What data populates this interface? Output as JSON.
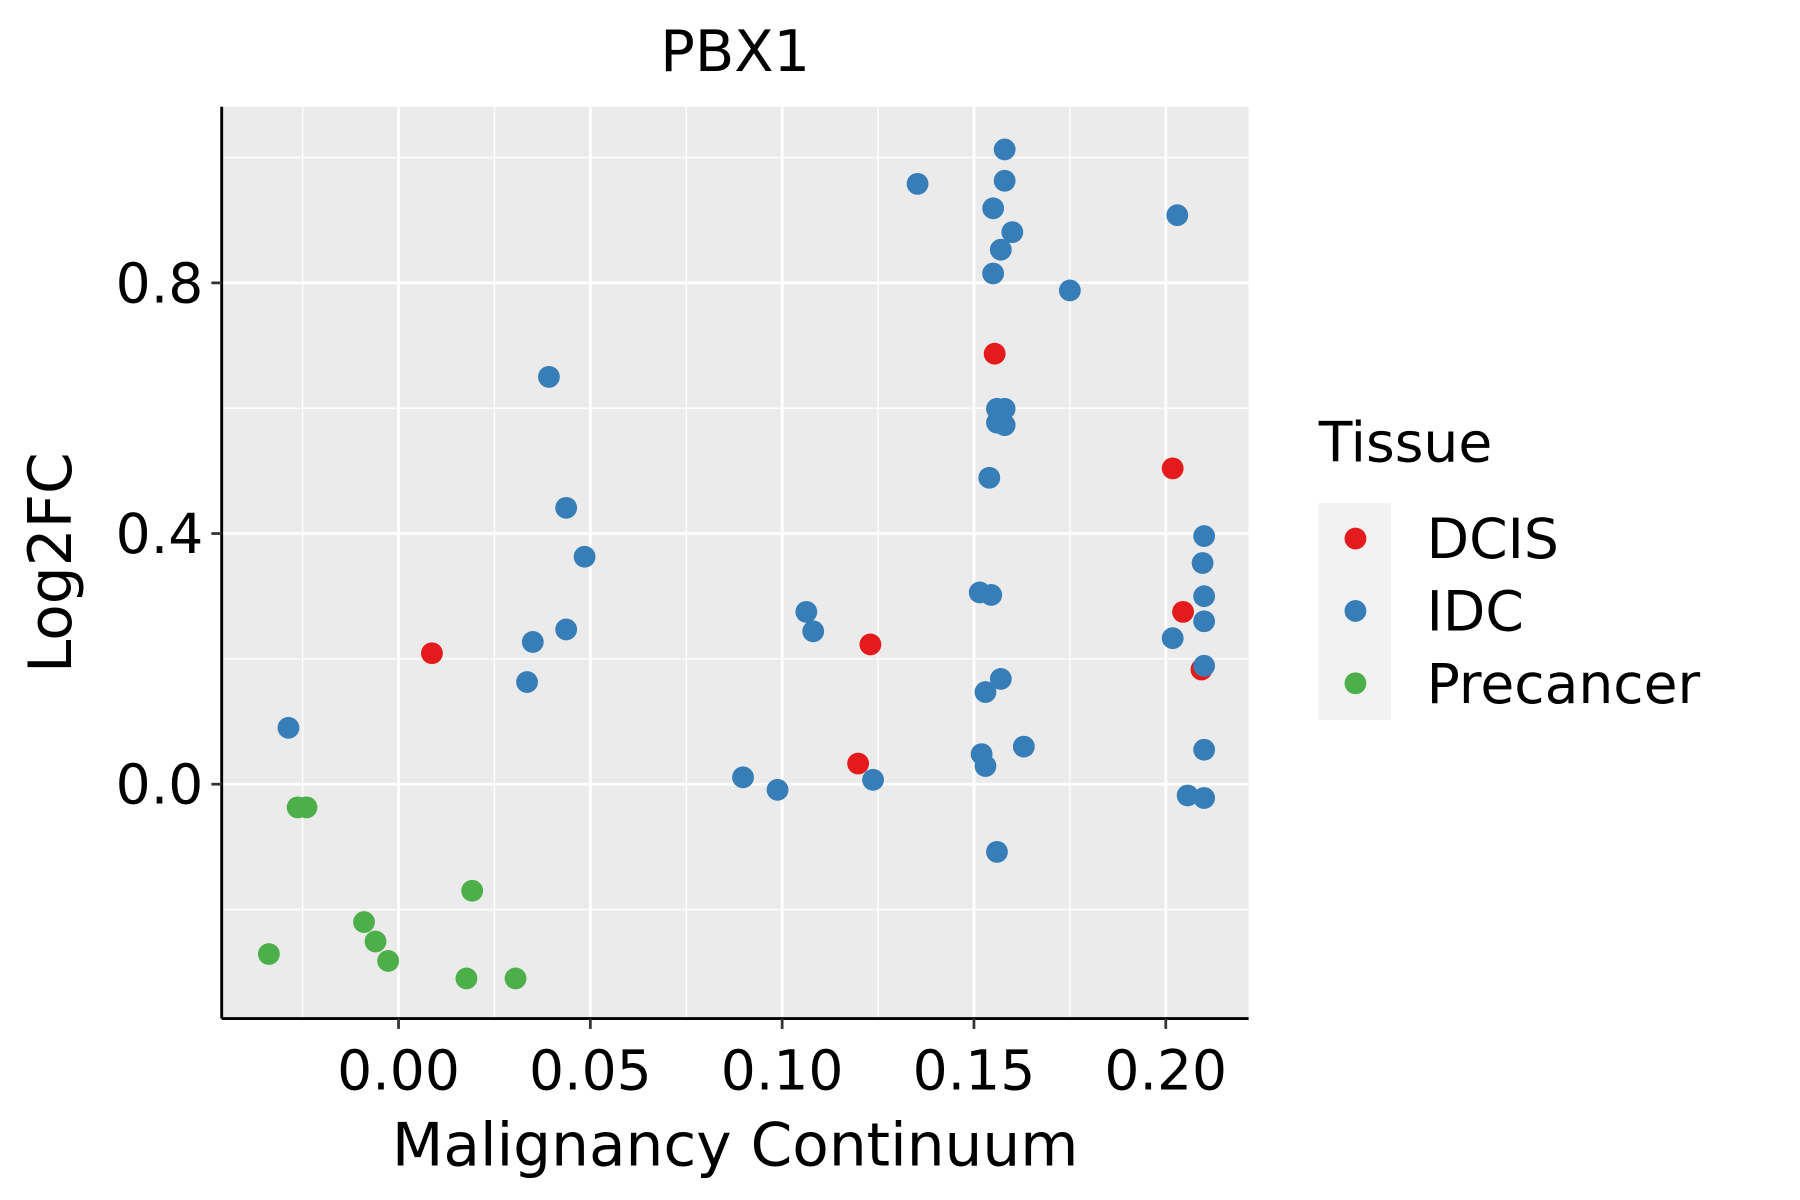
{
  "chart_data": {
    "type": "scatter",
    "title": "PBX1",
    "xlabel": "Malignancy Continuum",
    "ylabel": "Log2FC",
    "xlim": [
      -0.0461,
      0.2216
    ],
    "ylim": [
      -0.374,
      1.081
    ],
    "x_ticks": [
      0.0,
      0.05,
      0.1,
      0.15,
      0.2
    ],
    "x_tick_labels": [
      "0.00",
      "0.05",
      "0.10",
      "0.15",
      "0.20"
    ],
    "y_ticks": [
      0.0,
      0.4,
      0.8
    ],
    "y_tick_labels": [
      "0.0",
      "0.4",
      "0.8"
    ],
    "grid": true,
    "legend": {
      "title": "Tissue",
      "placement": "right"
    },
    "series": [
      {
        "name": "DCIS",
        "color": "#E41A1C",
        "points": [
          [
            0.0087,
            0.209
          ],
          [
            0.123,
            0.223
          ],
          [
            0.1198,
            0.033
          ],
          [
            0.1554,
            0.687
          ],
          [
            0.2018,
            0.504
          ],
          [
            0.2045,
            0.275
          ],
          [
            0.2093,
            0.183
          ]
        ]
      },
      {
        "name": "IDC",
        "color": "#377EB8",
        "points": [
          [
            -0.0287,
            0.09
          ],
          [
            0.0392,
            0.65
          ],
          [
            0.0437,
            0.441
          ],
          [
            0.0485,
            0.363
          ],
          [
            0.035,
            0.227
          ],
          [
            0.0437,
            0.247
          ],
          [
            0.0335,
            0.163
          ],
          [
            0.0898,
            0.011
          ],
          [
            0.0988,
            -0.009
          ],
          [
            0.1063,
            0.275
          ],
          [
            0.1081,
            0.244
          ],
          [
            0.1237,
            0.007
          ],
          [
            0.1353,
            0.958
          ],
          [
            0.158,
            1.013
          ],
          [
            0.158,
            0.963
          ],
          [
            0.155,
            0.919
          ],
          [
            0.16,
            0.881
          ],
          [
            0.157,
            0.853
          ],
          [
            0.155,
            0.815
          ],
          [
            0.175,
            0.788
          ],
          [
            0.203,
            0.908
          ],
          [
            0.156,
            0.599
          ],
          [
            0.158,
            0.599
          ],
          [
            0.156,
            0.577
          ],
          [
            0.158,
            0.573
          ],
          [
            0.154,
            0.489
          ],
          [
            0.1515,
            0.306
          ],
          [
            0.1545,
            0.302
          ],
          [
            0.157,
            0.168
          ],
          [
            0.153,
            0.147
          ],
          [
            0.163,
            0.06
          ],
          [
            0.152,
            0.048
          ],
          [
            0.153,
            0.029
          ],
          [
            0.156,
            -0.108
          ],
          [
            0.21,
            0.396
          ],
          [
            0.2096,
            0.353
          ],
          [
            0.21,
            0.3
          ],
          [
            0.21,
            0.26
          ],
          [
            0.2018,
            0.233
          ],
          [
            0.21,
            0.189
          ],
          [
            0.21,
            0.055
          ],
          [
            0.2057,
            -0.018
          ],
          [
            0.21,
            -0.022
          ]
        ]
      },
      {
        "name": "Precancer",
        "color": "#4DAF4A",
        "points": [
          [
            -0.0263,
            -0.037
          ],
          [
            -0.024,
            -0.037
          ],
          [
            0.0192,
            -0.17
          ],
          [
            -0.009,
            -0.22
          ],
          [
            -0.006,
            -0.251
          ],
          [
            -0.0027,
            -0.282
          ],
          [
            -0.0338,
            -0.271
          ],
          [
            0.0177,
            -0.31
          ],
          [
            0.0305,
            -0.31
          ]
        ]
      }
    ]
  }
}
